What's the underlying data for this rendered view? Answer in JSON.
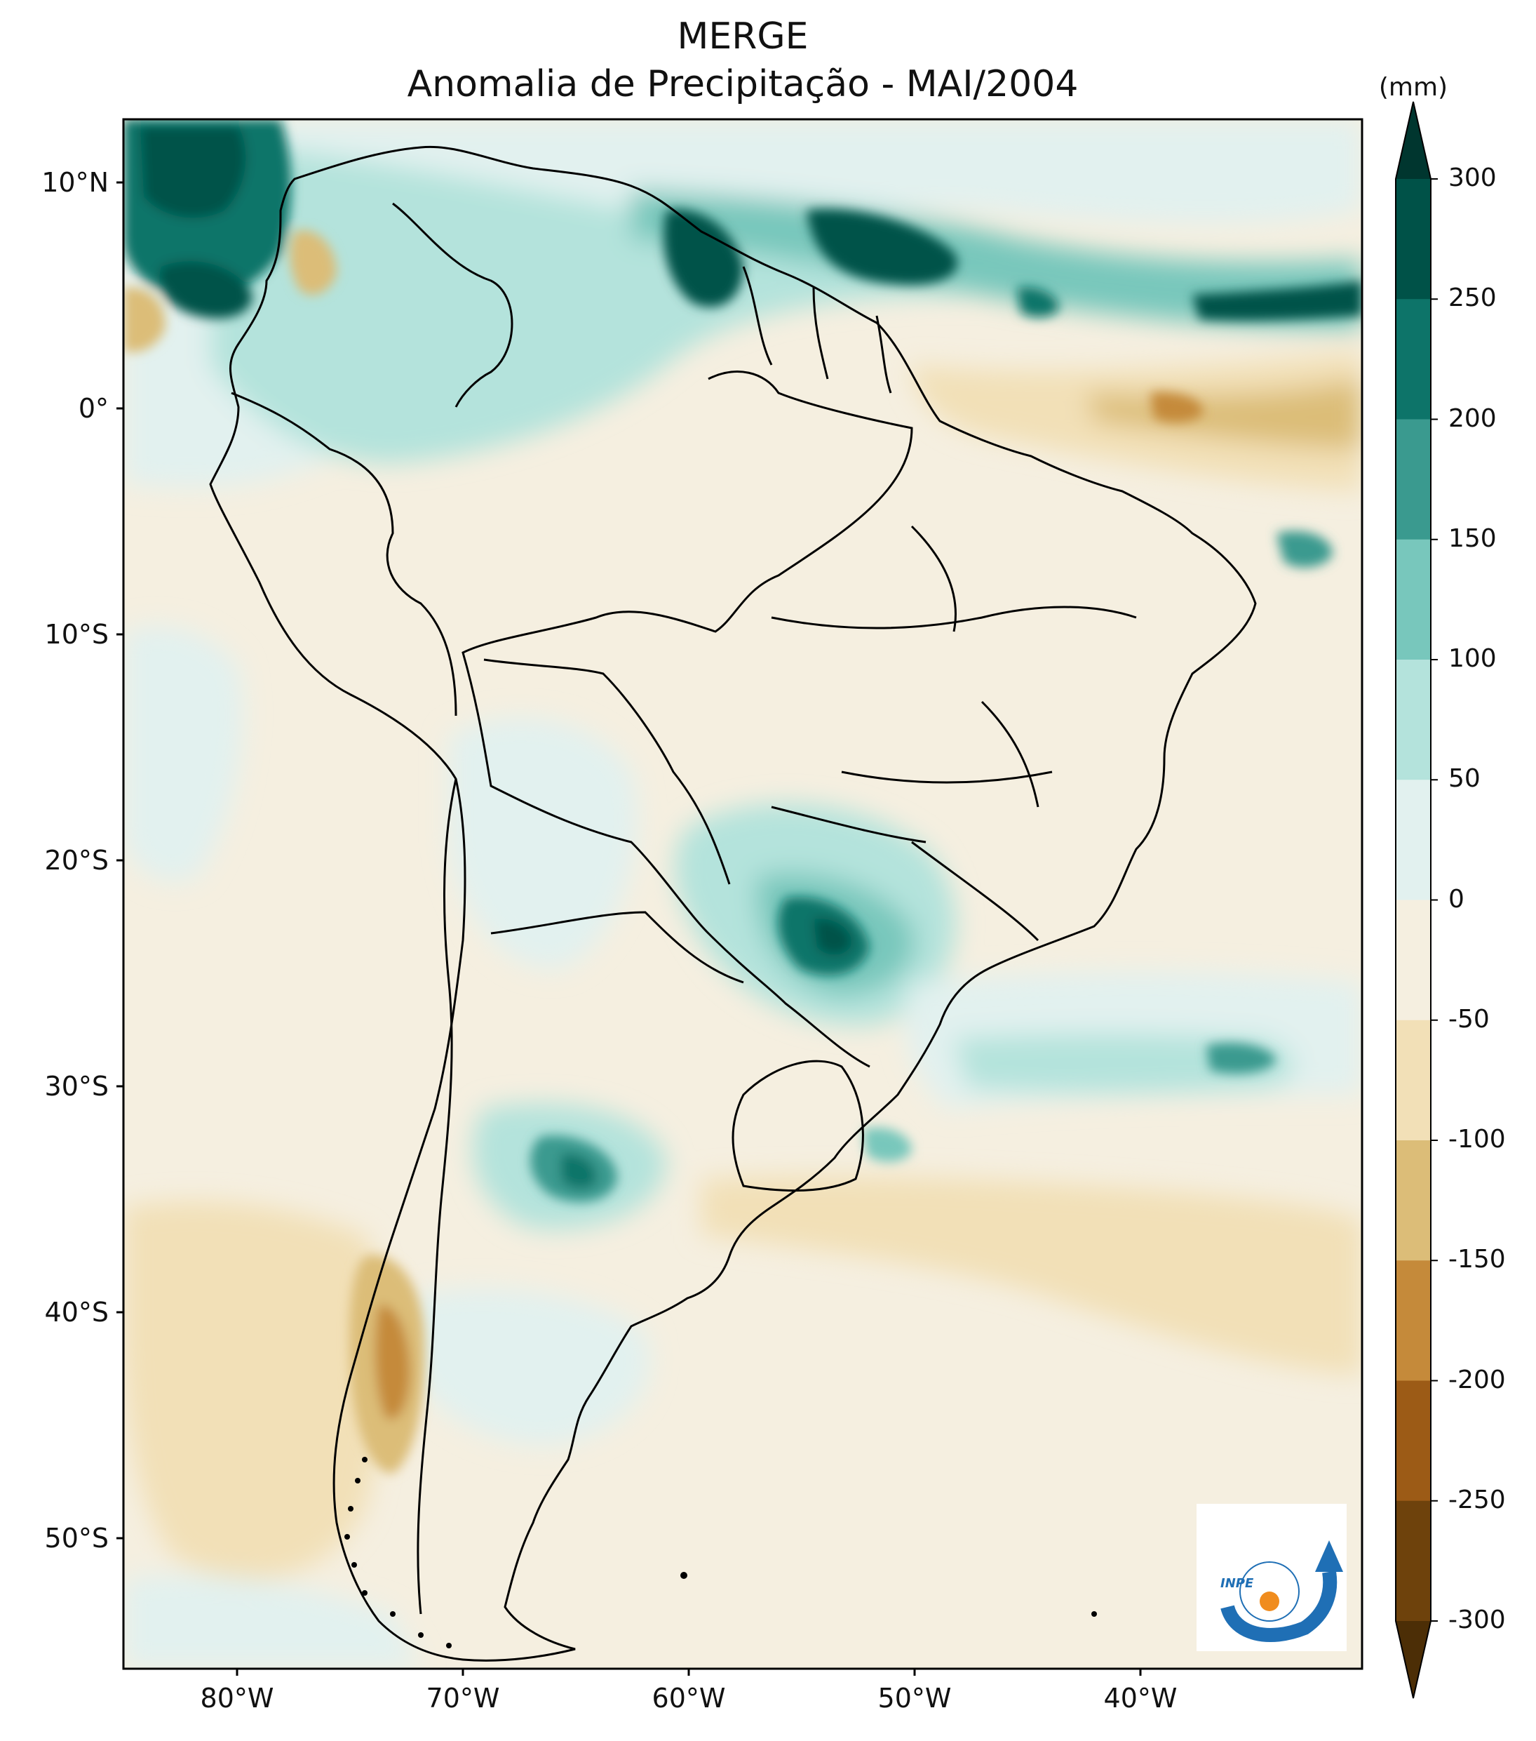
{
  "title": {
    "line1": "MERGE",
    "line2": "Anomalia de Precipitação - MAI/2004"
  },
  "lat_ticks": [
    "10°N",
    "0°",
    "10°S",
    "20°S",
    "30°S",
    "40°S",
    "50°S"
  ],
  "lon_ticks": [
    "80°W",
    "70°W",
    "60°W",
    "50°W",
    "40°W"
  ],
  "colorbar": {
    "units": "(mm)",
    "ticks": [
      "300",
      "250",
      "200",
      "150",
      "100",
      "50",
      "0",
      "-50",
      "-100",
      "-150",
      "-200",
      "-250",
      "-300"
    ],
    "colors": [
      "#00362f",
      "#005248",
      "#0d7469",
      "#3a9a8f",
      "#78c7bc",
      "#b4e3dc",
      "#e2f1ef",
      "#f5efe0",
      "#f2e0b7",
      "#dcbd78",
      "#c58a3a",
      "#9c5b16",
      "#6e420c",
      "#4c2e06"
    ]
  },
  "logo": {
    "text": "INPE"
  },
  "colors": {
    "frame": "#000000",
    "ocean_base": "#f5efe0"
  }
}
